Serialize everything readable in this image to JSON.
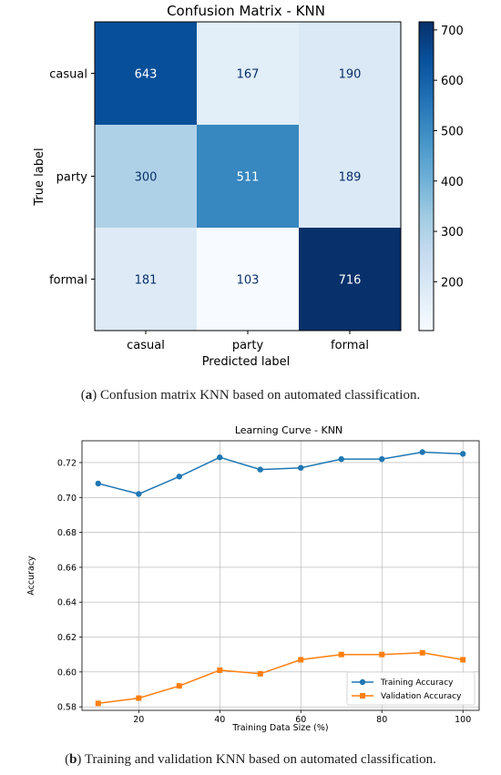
{
  "figure_a": {
    "caption_letter": "a",
    "caption_text": "Confusion matrix KNN based on automated classification."
  },
  "figure_b": {
    "caption_letter": "b",
    "caption_text": "Training and validation KNN based on automated classification."
  },
  "colors": {
    "training": "#1f77b4",
    "validation": "#ff7f0e",
    "cmap_low": "#f7fbff",
    "cmap_high": "#08306b"
  },
  "chart_data": [
    {
      "type": "heatmap",
      "title": "Confusion Matrix - KNN",
      "xlabel": "Predicted label",
      "ylabel": "True label",
      "x_categories": [
        "casual",
        "party",
        "formal"
      ],
      "y_categories": [
        "casual",
        "party",
        "formal"
      ],
      "values": [
        [
          643,
          167,
          190
        ],
        [
          300,
          511,
          189
        ],
        [
          181,
          103,
          716
        ]
      ],
      "colorbar": {
        "min": 103,
        "max": 716,
        "ticks": [
          200,
          300,
          400,
          500,
          600,
          700
        ],
        "colormap": "Blues"
      }
    },
    {
      "type": "line",
      "title": "Learning Curve - KNN",
      "xlabel": "Training Data Size (%)",
      "ylabel": "Accuracy",
      "x": [
        10,
        20,
        30,
        40,
        50,
        60,
        70,
        80,
        90,
        100
      ],
      "xlim": [
        6,
        104
      ],
      "ylim": [
        0.578,
        0.7325
      ],
      "xticks": [
        20,
        40,
        60,
        80,
        100
      ],
      "yticks": [
        0.58,
        0.6,
        0.62,
        0.64,
        0.66,
        0.68,
        0.7,
        0.72
      ],
      "grid": true,
      "legend_position": "lower-right",
      "series": [
        {
          "name": "Training Accuracy",
          "marker": "circle",
          "values": [
            0.708,
            0.702,
            0.712,
            0.723,
            0.716,
            0.717,
            0.722,
            0.722,
            0.726,
            0.725
          ]
        },
        {
          "name": "Validation Accuracy",
          "marker": "square",
          "values": [
            0.582,
            0.585,
            0.592,
            0.601,
            0.599,
            0.607,
            0.61,
            0.61,
            0.611,
            0.607
          ]
        }
      ]
    }
  ]
}
